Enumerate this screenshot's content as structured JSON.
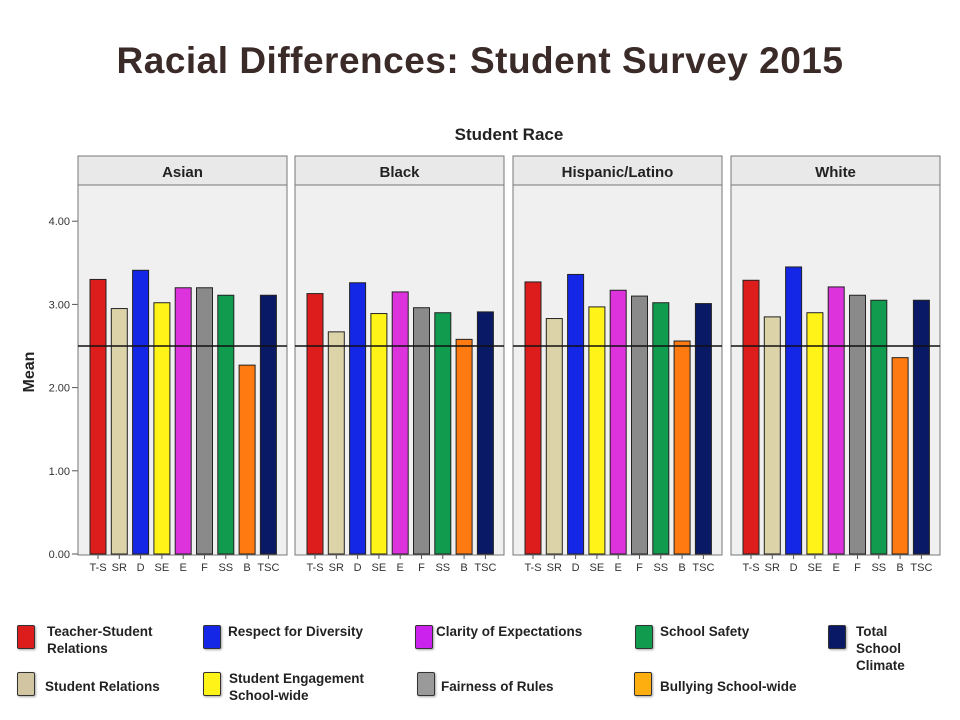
{
  "title": "Racial Differences: Student Survey 2015",
  "chart_data": {
    "type": "bar",
    "title": "Student Race",
    "ylabel": "Mean",
    "ylim": [
      0,
      4.5
    ],
    "yticks": [
      "0.00",
      "1.00",
      "2.00",
      "3.00",
      "4.00"
    ],
    "reference_line": 2.5,
    "categories": [
      "T-S",
      "SR",
      "D",
      "SE",
      "E",
      "F",
      "SS",
      "B",
      "TSC"
    ],
    "category_colors": [
      "#dd1c1c",
      "#dcd3a8",
      "#1426e6",
      "#fff318",
      "#dc33dc",
      "#8a8a8a",
      "#119b4f",
      "#ff7a10",
      "#0a1966"
    ],
    "panels": [
      {
        "name": "Asian",
        "values": [
          3.3,
          2.95,
          3.41,
          3.02,
          3.2,
          3.2,
          3.11,
          2.27,
          3.11
        ]
      },
      {
        "name": "Black",
        "values": [
          3.13,
          2.67,
          3.26,
          2.89,
          3.15,
          2.96,
          2.9,
          2.58,
          2.91
        ]
      },
      {
        "name": "Hispanic/Latino",
        "values": [
          3.27,
          2.83,
          3.36,
          2.97,
          3.17,
          3.1,
          3.02,
          2.56,
          3.01
        ]
      },
      {
        "name": "White",
        "values": [
          3.29,
          2.85,
          3.45,
          2.9,
          3.21,
          3.11,
          3.05,
          2.36,
          3.05
        ]
      }
    ]
  },
  "legend": [
    {
      "label": "Teacher-Student Relations",
      "lines": [
        "Teacher-Student",
        "Relations"
      ],
      "color": "#dd1c1c"
    },
    {
      "label": "Respect for Diversity",
      "lines": [
        "Respect for Diversity"
      ],
      "color": "#1426e6"
    },
    {
      "label": "Clarity of Expectations",
      "lines": [
        "Clarity of Expectations"
      ],
      "color": "#cc22ee"
    },
    {
      "label": "School Safety",
      "lines": [
        "School Safety"
      ],
      "color": "#119b4f"
    },
    {
      "label": "Total School Climate",
      "lines": [
        "Total",
        "School",
        "Climate"
      ],
      "color": "#0a1966"
    },
    {
      "label": "Student Relations",
      "lines": [
        "Student Relations"
      ],
      "color": "#d2c6a2"
    },
    {
      "label": "Student Engagement School-wide",
      "lines": [
        "Student Engagement",
        "School-wide"
      ],
      "color": "#fff318"
    },
    {
      "label": "Fairness of Rules",
      "lines": [
        "Fairness of Rules"
      ],
      "color": "#9a9a9a"
    },
    {
      "label": "Bullying School-wide",
      "lines": [
        "Bullying School-wide"
      ],
      "color": "#ffae10"
    }
  ]
}
